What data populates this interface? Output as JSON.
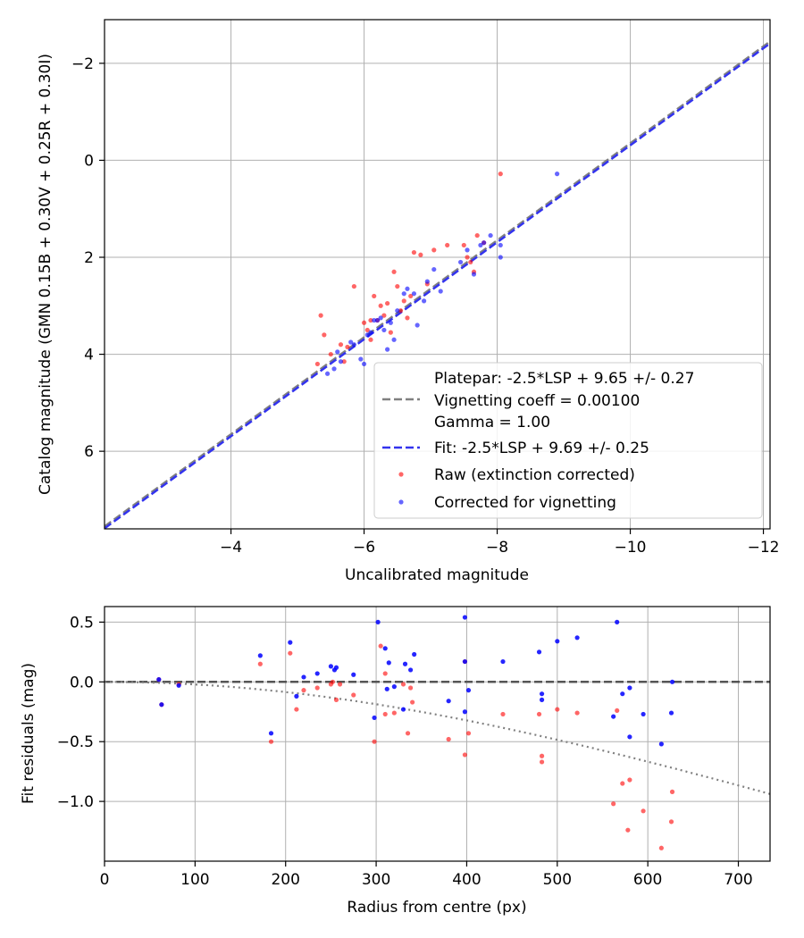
{
  "colors": {
    "raw": "#ff0000",
    "corrected": "#0000ff",
    "platepar_line": "#808080",
    "fit_line": "#3333ee",
    "reference_line": "#555555",
    "vignetting_curve": "#808080"
  },
  "chart_data": [
    {
      "type": "scatter",
      "name": "calibration",
      "xlabel": "Uncalibrated magnitude",
      "ylabel": "Catalog magnitude (GMN 0.15B + 0.30V + 0.25R + 0.30I)",
      "xlim": [
        -2.1,
        -12.1
      ],
      "ylim": [
        7.6,
        -2.9
      ],
      "xticks": [
        -4,
        -6,
        -8,
        -10,
        -12
      ],
      "xtick_labels": [
        "−4",
        "−6",
        "−8",
        "−10",
        "−12"
      ],
      "yticks": [
        -2,
        0,
        2,
        4,
        6
      ],
      "ytick_labels": [
        "−2",
        "0",
        "2",
        "4",
        "6"
      ],
      "grid": true,
      "legend_position": "lower-right",
      "legend": {
        "platepar_lines": [
          "Platepar: -2.5*LSP + 9.65 +/- 0.27",
          "Vignetting coeff = 0.00100",
          "Gamma = 1.00"
        ],
        "fit": "Fit: -2.5*LSP + 9.69 +/- 0.25",
        "raw": "Raw (extinction corrected)",
        "corrected": "Corrected for vignetting"
      },
      "lines": [
        {
          "name": "Platepar",
          "slope": 1,
          "intercept": 9.65,
          "style": "dashed"
        },
        {
          "name": "Fit",
          "slope": 1,
          "intercept": 9.69,
          "style": "dashed"
        }
      ],
      "series": [
        {
          "name": "Raw (extinction corrected)",
          "points": [
            [
              -8.05,
              0.28
            ],
            [
              -5.3,
              4.2
            ],
            [
              -5.4,
              3.6
            ],
            [
              -5.5,
              4.0
            ],
            [
              -5.35,
              3.2
            ],
            [
              -5.65,
              3.8
            ],
            [
              -5.7,
              4.15
            ],
            [
              -5.75,
              3.85
            ],
            [
              -5.85,
              2.6
            ],
            [
              -6.0,
              3.35
            ],
            [
              -6.05,
              3.5
            ],
            [
              -6.1,
              3.7
            ],
            [
              -6.15,
              2.8
            ],
            [
              -6.2,
              3.3
            ],
            [
              -6.25,
              3.0
            ],
            [
              -6.3,
              3.2
            ],
            [
              -6.35,
              2.95
            ],
            [
              -6.4,
              3.55
            ],
            [
              -6.45,
              2.3
            ],
            [
              -6.5,
              2.6
            ],
            [
              -6.55,
              3.1
            ],
            [
              -6.6,
              2.9
            ],
            [
              -6.65,
              3.25
            ],
            [
              -6.75,
              1.9
            ],
            [
              -6.85,
              1.95
            ],
            [
              -6.95,
              2.55
            ],
            [
              -7.05,
              1.85
            ],
            [
              -7.25,
              1.75
            ],
            [
              -7.5,
              1.75
            ],
            [
              -7.55,
              2.0
            ],
            [
              -7.6,
              2.1
            ],
            [
              -7.65,
              2.3
            ],
            [
              -7.7,
              1.55
            ],
            [
              -7.8,
              1.7
            ],
            [
              -6.7,
              2.8
            ],
            [
              -6.1,
              3.3
            ]
          ]
        },
        {
          "name": "Corrected for vignetting",
          "points": [
            [
              -8.9,
              0.28
            ],
            [
              -5.45,
              4.4
            ],
            [
              -5.55,
              4.3
            ],
            [
              -5.6,
              3.95
            ],
            [
              -5.8,
              3.75
            ],
            [
              -5.85,
              3.8
            ],
            [
              -5.95,
              4.1
            ],
            [
              -6.0,
              4.2
            ],
            [
              -6.05,
              3.6
            ],
            [
              -6.1,
              3.55
            ],
            [
              -6.2,
              3.3
            ],
            [
              -6.25,
              3.25
            ],
            [
              -6.3,
              3.5
            ],
            [
              -6.35,
              3.9
            ],
            [
              -6.4,
              3.35
            ],
            [
              -6.45,
              3.7
            ],
            [
              -6.5,
              3.1
            ],
            [
              -6.6,
              2.75
            ],
            [
              -6.65,
              2.65
            ],
            [
              -6.75,
              2.75
            ],
            [
              -6.8,
              3.4
            ],
            [
              -6.9,
              2.9
            ],
            [
              -7.05,
              2.25
            ],
            [
              -7.15,
              2.7
            ],
            [
              -7.45,
              2.1
            ],
            [
              -7.55,
              1.85
            ],
            [
              -7.75,
              1.75
            ],
            [
              -7.8,
              1.7
            ],
            [
              -7.9,
              1.55
            ],
            [
              -8.05,
              2.0
            ],
            [
              -8.05,
              1.75
            ],
            [
              -7.65,
              2.35
            ],
            [
              -6.95,
              2.5
            ],
            [
              -6.15,
              3.3
            ],
            [
              -5.65,
              4.15
            ]
          ]
        }
      ]
    },
    {
      "type": "scatter",
      "name": "residuals",
      "xlabel": "Radius from centre (px)",
      "ylabel": "Fit residuals (mag)",
      "xlim": [
        0,
        735
      ],
      "ylim": [
        -1.5,
        0.63
      ],
      "xticks": [
        0,
        100,
        200,
        300,
        400,
        500,
        600,
        700
      ],
      "xtick_labels": [
        "0",
        "100",
        "200",
        "300",
        "400",
        "500",
        "600",
        "700"
      ],
      "yticks": [
        0.5,
        0,
        -0.5,
        -1.0
      ],
      "ytick_labels": [
        "0.5",
        "0.0",
        "−0.5",
        "−1.0"
      ],
      "grid": true,
      "reference_line": {
        "y": 0,
        "style": "dashed"
      },
      "vignetting_curve": {
        "style": "dotted",
        "coefficient": 0.001
      },
      "series": [
        {
          "name": "Raw (extinction corrected)",
          "points": [
            [
              60,
              0.02
            ],
            [
              63,
              -0.19
            ],
            [
              82,
              -0.02
            ],
            [
              172,
              0.15
            ],
            [
              184,
              -0.5
            ],
            [
              205,
              0.24
            ],
            [
              212,
              -0.23
            ],
            [
              220,
              -0.07
            ],
            [
              235,
              -0.05
            ],
            [
              250,
              -0.02
            ],
            [
              252,
              0.0
            ],
            [
              256,
              -0.15
            ],
            [
              260,
              -0.02
            ],
            [
              275,
              -0.11
            ],
            [
              298,
              -0.5
            ],
            [
              305,
              0.3
            ],
            [
              310,
              0.07
            ],
            [
              310,
              -0.27
            ],
            [
              320,
              -0.26
            ],
            [
              330,
              -0.02
            ],
            [
              335,
              -0.43
            ],
            [
              338,
              -0.05
            ],
            [
              340,
              -0.17
            ],
            [
              380,
              -0.48
            ],
            [
              398,
              -0.61
            ],
            [
              398,
              0.17
            ],
            [
              402,
              -0.43
            ],
            [
              440,
              -0.27
            ],
            [
              480,
              -0.27
            ],
            [
              483,
              -0.62
            ],
            [
              483,
              -0.67
            ],
            [
              500,
              -0.23
            ],
            [
              522,
              -0.26
            ],
            [
              562,
              -1.02
            ],
            [
              566,
              -0.24
            ],
            [
              572,
              -0.85
            ],
            [
              578,
              -1.24
            ],
            [
              580,
              -0.82
            ],
            [
              595,
              -1.08
            ],
            [
              615,
              -1.39
            ],
            [
              626,
              -1.17
            ],
            [
              627,
              -0.92
            ]
          ]
        },
        {
          "name": "Corrected for vignetting",
          "points": [
            [
              60,
              0.02
            ],
            [
              63,
              -0.19
            ],
            [
              82,
              -0.03
            ],
            [
              172,
              0.22
            ],
            [
              184,
              -0.43
            ],
            [
              205,
              0.33
            ],
            [
              212,
              -0.12
            ],
            [
              220,
              0.04
            ],
            [
              235,
              0.07
            ],
            [
              250,
              0.13
            ],
            [
              254,
              0.1
            ],
            [
              256,
              0.12
            ],
            [
              275,
              0.06
            ],
            [
              298,
              -0.3
            ],
            [
              302,
              0.5
            ],
            [
              310,
              0.28
            ],
            [
              312,
              -0.06
            ],
            [
              314,
              0.16
            ],
            [
              320,
              -0.04
            ],
            [
              330,
              -0.23
            ],
            [
              332,
              0.15
            ],
            [
              338,
              0.1
            ],
            [
              342,
              0.23
            ],
            [
              380,
              -0.16
            ],
            [
              398,
              0.54
            ],
            [
              398,
              -0.25
            ],
            [
              398,
              0.17
            ],
            [
              402,
              -0.07
            ],
            [
              440,
              0.17
            ],
            [
              480,
              0.25
            ],
            [
              483,
              -0.15
            ],
            [
              483,
              -0.1
            ],
            [
              500,
              0.34
            ],
            [
              522,
              0.37
            ],
            [
              562,
              -0.29
            ],
            [
              566,
              0.5
            ],
            [
              572,
              -0.1
            ],
            [
              580,
              -0.05
            ],
            [
              580,
              -0.46
            ],
            [
              595,
              -0.27
            ],
            [
              615,
              -0.52
            ],
            [
              626,
              -0.26
            ],
            [
              627,
              0.0
            ]
          ]
        }
      ]
    }
  ]
}
